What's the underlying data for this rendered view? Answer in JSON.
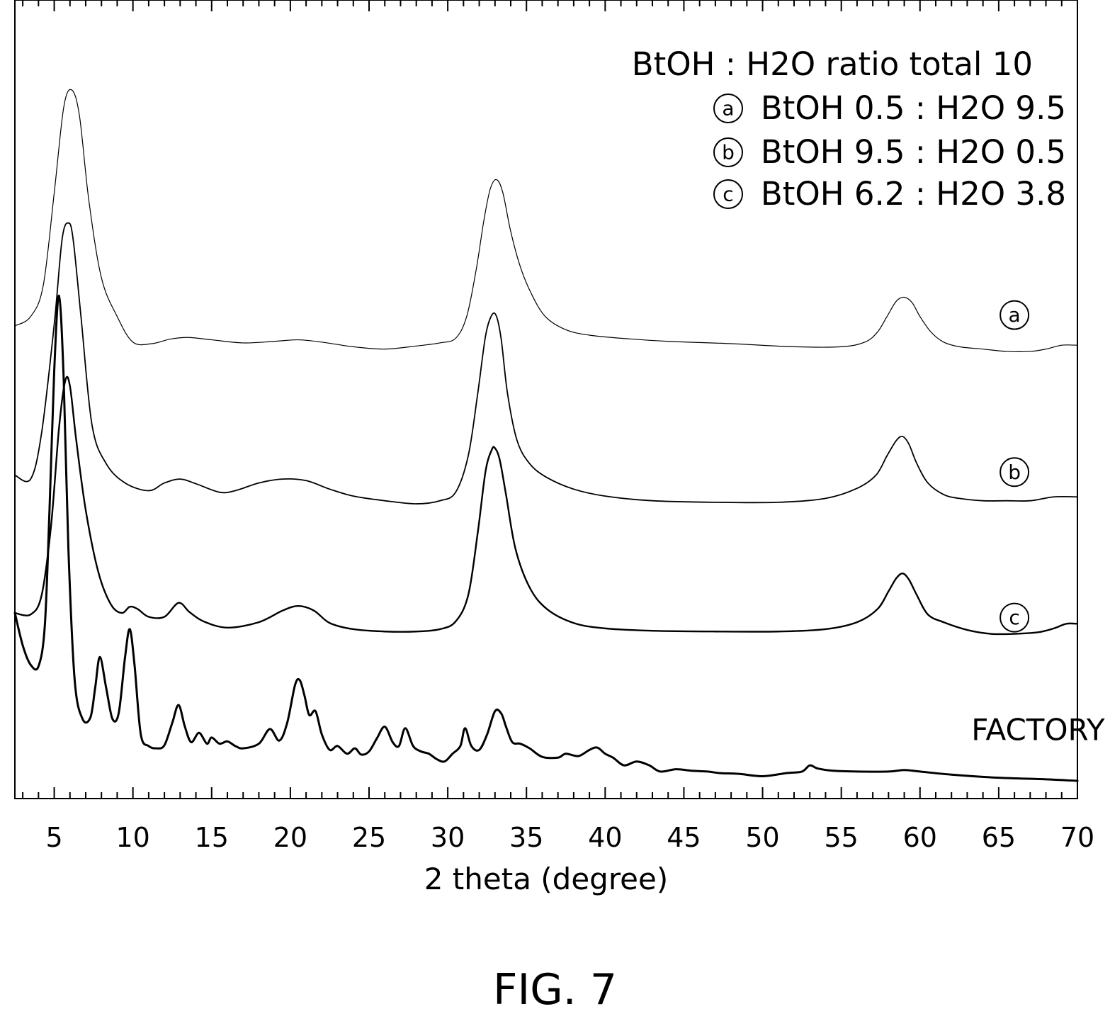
{
  "figure_caption": "FIG. 7",
  "chart_data": {
    "type": "line",
    "xlabel": "2 theta (degree)",
    "ylabel": "",
    "xlim": [
      2.5,
      70
    ],
    "ylim": [
      0,
      1
    ],
    "x_ticks": [
      5,
      10,
      15,
      20,
      25,
      30,
      35,
      40,
      45,
      50,
      55,
      60,
      65,
      70
    ],
    "x_tick_labels": [
      "5",
      "10",
      "15",
      "20",
      "25",
      "30",
      "35",
      "40",
      "45",
      "50",
      "55",
      "60",
      "65",
      "70"
    ],
    "y_axis_visible": false,
    "grid": false,
    "legend_position": "top-right",
    "legend": {
      "title": "BtOH : H2O ratio total 10",
      "entries": [
        {
          "marker": "a",
          "label": "BtOH 0.5 : H2O 9.5"
        },
        {
          "marker": "b",
          "label": "BtOH 9.5 : H2O 0.5"
        },
        {
          "marker": "c",
          "label": "BtOH 6.2 : H2O 3.8"
        }
      ]
    },
    "series": [
      {
        "name": "a",
        "label_style": "circled",
        "label_x": 66,
        "label_y": 0.602,
        "stroke_width": 1.2,
        "x": [
          2.5,
          3.5,
          4.3,
          5.0,
          5.6,
          6.1,
          6.6,
          7.2,
          8.0,
          9.0,
          10.0,
          11.2,
          12.4,
          13.5,
          15.0,
          17.0,
          19.0,
          20.5,
          22.0,
          24.0,
          26.0,
          28.0,
          29.5,
          30.5,
          31.2,
          31.8,
          32.3,
          32.7,
          33.1,
          33.5,
          34.0,
          34.6,
          35.3,
          36.2,
          37.5,
          39.0,
          41.0,
          44.0,
          48.0,
          52.0,
          55.0,
          56.5,
          57.3,
          57.9,
          58.5,
          59.0,
          59.5,
          60.0,
          60.7,
          61.5,
          62.5,
          64.0,
          65.5,
          67.0,
          68.0,
          69.0,
          70.0
        ],
        "y": [
          0.588,
          0.6,
          0.64,
          0.76,
          0.87,
          0.893,
          0.86,
          0.75,
          0.65,
          0.6,
          0.567,
          0.565,
          0.571,
          0.573,
          0.57,
          0.566,
          0.568,
          0.57,
          0.567,
          0.561,
          0.558,
          0.562,
          0.566,
          0.572,
          0.6,
          0.66,
          0.725,
          0.765,
          0.777,
          0.76,
          0.71,
          0.665,
          0.63,
          0.6,
          0.583,
          0.576,
          0.572,
          0.568,
          0.565,
          0.561,
          0.561,
          0.567,
          0.58,
          0.6,
          0.62,
          0.625,
          0.618,
          0.6,
          0.58,
          0.567,
          0.561,
          0.558,
          0.555,
          0.555,
          0.558,
          0.563,
          0.563
        ]
      },
      {
        "name": "b",
        "label_style": "circled",
        "label_x": 66,
        "label_y": 0.399,
        "stroke_width": 1.8,
        "x": [
          2.5,
          3.5,
          4.2,
          5.0,
          5.5,
          5.9,
          6.2,
          6.7,
          7.4,
          8.3,
          9.5,
          11.0,
          12.0,
          13.0,
          14.0,
          15.5,
          16.5,
          18.0,
          19.5,
          21.0,
          22.5,
          24.0,
          26.0,
          28.0,
          29.5,
          30.5,
          31.3,
          31.9,
          32.4,
          32.8,
          33.1,
          33.4,
          33.8,
          34.4,
          35.2,
          36.3,
          38.0,
          40.0,
          43.0,
          47.0,
          51.0,
          54.0,
          56.0,
          57.2,
          57.9,
          58.5,
          58.9,
          59.3,
          59.8,
          60.5,
          61.5,
          62.5,
          64.0,
          65.5,
          67.0,
          68.5,
          70.0
        ],
        "y": [
          0.395,
          0.39,
          0.45,
          0.59,
          0.7,
          0.721,
          0.7,
          0.6,
          0.46,
          0.41,
          0.385,
          0.375,
          0.385,
          0.39,
          0.384,
          0.373,
          0.375,
          0.385,
          0.39,
          0.388,
          0.377,
          0.368,
          0.362,
          0.358,
          0.362,
          0.373,
          0.42,
          0.5,
          0.575,
          0.602,
          0.6,
          0.57,
          0.5,
          0.44,
          0.41,
          0.392,
          0.377,
          0.368,
          0.362,
          0.36,
          0.36,
          0.365,
          0.378,
          0.395,
          0.42,
          0.44,
          0.445,
          0.435,
          0.41,
          0.385,
          0.37,
          0.365,
          0.362,
          0.362,
          0.362,
          0.367,
          0.367
        ]
      },
      {
        "name": "c",
        "label_style": "circled",
        "label_x": 66,
        "label_y": 0.211,
        "stroke_width": 2.4,
        "x": [
          2.5,
          3.5,
          4.2,
          4.8,
          5.3,
          5.7,
          6.0,
          6.4,
          7.0,
          7.8,
          8.6,
          9.3,
          9.8,
          10.3,
          11.0,
          12.0,
          12.9,
          13.6,
          14.5,
          16.0,
          18.0,
          19.5,
          20.5,
          21.5,
          22.5,
          24.0,
          26.0,
          28.0,
          29.5,
          30.5,
          31.3,
          31.9,
          32.4,
          32.8,
          33.0,
          33.3,
          33.7,
          34.3,
          35.2,
          36.3,
          38.0,
          40.0,
          43.0,
          47.0,
          51.0,
          54.0,
          56.0,
          57.3,
          58.0,
          58.5,
          58.9,
          59.3,
          59.8,
          60.5,
          61.5,
          63.0,
          64.5,
          66.0,
          67.5,
          68.5,
          69.3,
          70.0
        ],
        "y": [
          0.217,
          0.215,
          0.24,
          0.33,
          0.455,
          0.517,
          0.51,
          0.44,
          0.35,
          0.27,
          0.228,
          0.217,
          0.225,
          0.222,
          0.212,
          0.212,
          0.23,
          0.218,
          0.206,
          0.198,
          0.205,
          0.22,
          0.226,
          0.22,
          0.204,
          0.196,
          0.193,
          0.193,
          0.196,
          0.206,
          0.24,
          0.32,
          0.4,
          0.428,
          0.43,
          0.415,
          0.37,
          0.3,
          0.25,
          0.222,
          0.204,
          0.197,
          0.194,
          0.193,
          0.193,
          0.196,
          0.205,
          0.222,
          0.245,
          0.262,
          0.268,
          0.26,
          0.24,
          0.215,
          0.205,
          0.195,
          0.19,
          0.19,
          0.192,
          0.197,
          0.203,
          0.203
        ]
      },
      {
        "name": "FACTORY",
        "label_style": "text",
        "label_x": 67.5,
        "label_y": 0.066,
        "stroke_width": 3.0,
        "x": [
          2.5,
          3.0,
          3.5,
          4.0,
          4.4,
          4.7,
          5.0,
          5.3,
          5.6,
          5.9,
          6.3,
          6.8,
          7.3,
          7.6,
          7.9,
          8.3,
          8.7,
          9.1,
          9.5,
          9.8,
          10.1,
          10.5,
          11.0,
          11.5,
          12.0,
          12.5,
          12.9,
          13.3,
          13.7,
          14.2,
          14.7,
          15.0,
          15.5,
          16.0,
          16.5,
          17.0,
          18.0,
          18.7,
          19.3,
          19.8,
          20.3,
          20.6,
          20.9,
          21.2,
          21.6,
          22.0,
          22.5,
          23.0,
          23.6,
          24.1,
          24.5,
          25.0,
          25.5,
          26.0,
          26.5,
          26.9,
          27.3,
          27.8,
          28.3,
          28.8,
          29.3,
          29.8,
          30.3,
          30.8,
          31.1,
          31.5,
          32.0,
          32.5,
          33.0,
          33.4,
          33.7,
          34.1,
          34.6,
          35.2,
          36.0,
          37.0,
          37.5,
          38.3,
          39.0,
          39.5,
          40.0,
          40.5,
          41.2,
          42.0,
          42.8,
          43.5,
          44.5,
          45.5,
          46.5,
          47.3,
          48.5,
          50.0,
          51.5,
          52.5,
          53.0,
          53.5,
          54.5,
          56.0,
          58.0,
          59.0,
          60.0,
          62.0,
          65.0,
          68.0,
          70.0
        ],
        "y": [
          0.217,
          0.175,
          0.15,
          0.148,
          0.2,
          0.35,
          0.53,
          0.627,
          0.52,
          0.3,
          0.13,
          0.08,
          0.082,
          0.12,
          0.16,
          0.12,
          0.08,
          0.088,
          0.16,
          0.196,
          0.15,
          0.06,
          0.045,
          0.042,
          0.046,
          0.075,
          0.098,
          0.07,
          0.05,
          0.062,
          0.048,
          0.056,
          0.048,
          0.051,
          0.045,
          0.042,
          0.048,
          0.067,
          0.052,
          0.075,
          0.124,
          0.13,
          0.11,
          0.085,
          0.09,
          0.06,
          0.04,
          0.045,
          0.035,
          0.042,
          0.034,
          0.038,
          0.055,
          0.07,
          0.05,
          0.045,
          0.068,
          0.045,
          0.038,
          0.035,
          0.028,
          0.025,
          0.035,
          0.045,
          0.068,
          0.045,
          0.04,
          0.06,
          0.09,
          0.087,
          0.07,
          0.05,
          0.048,
          0.042,
          0.031,
          0.03,
          0.035,
          0.032,
          0.04,
          0.043,
          0.035,
          0.03,
          0.02,
          0.025,
          0.02,
          0.012,
          0.015,
          0.013,
          0.012,
          0.01,
          0.009,
          0.006,
          0.01,
          0.012,
          0.02,
          0.016,
          0.013,
          0.012,
          0.012,
          0.014,
          0.012,
          0.008,
          0.004,
          0.002,
          0.0
        ]
      }
    ]
  }
}
